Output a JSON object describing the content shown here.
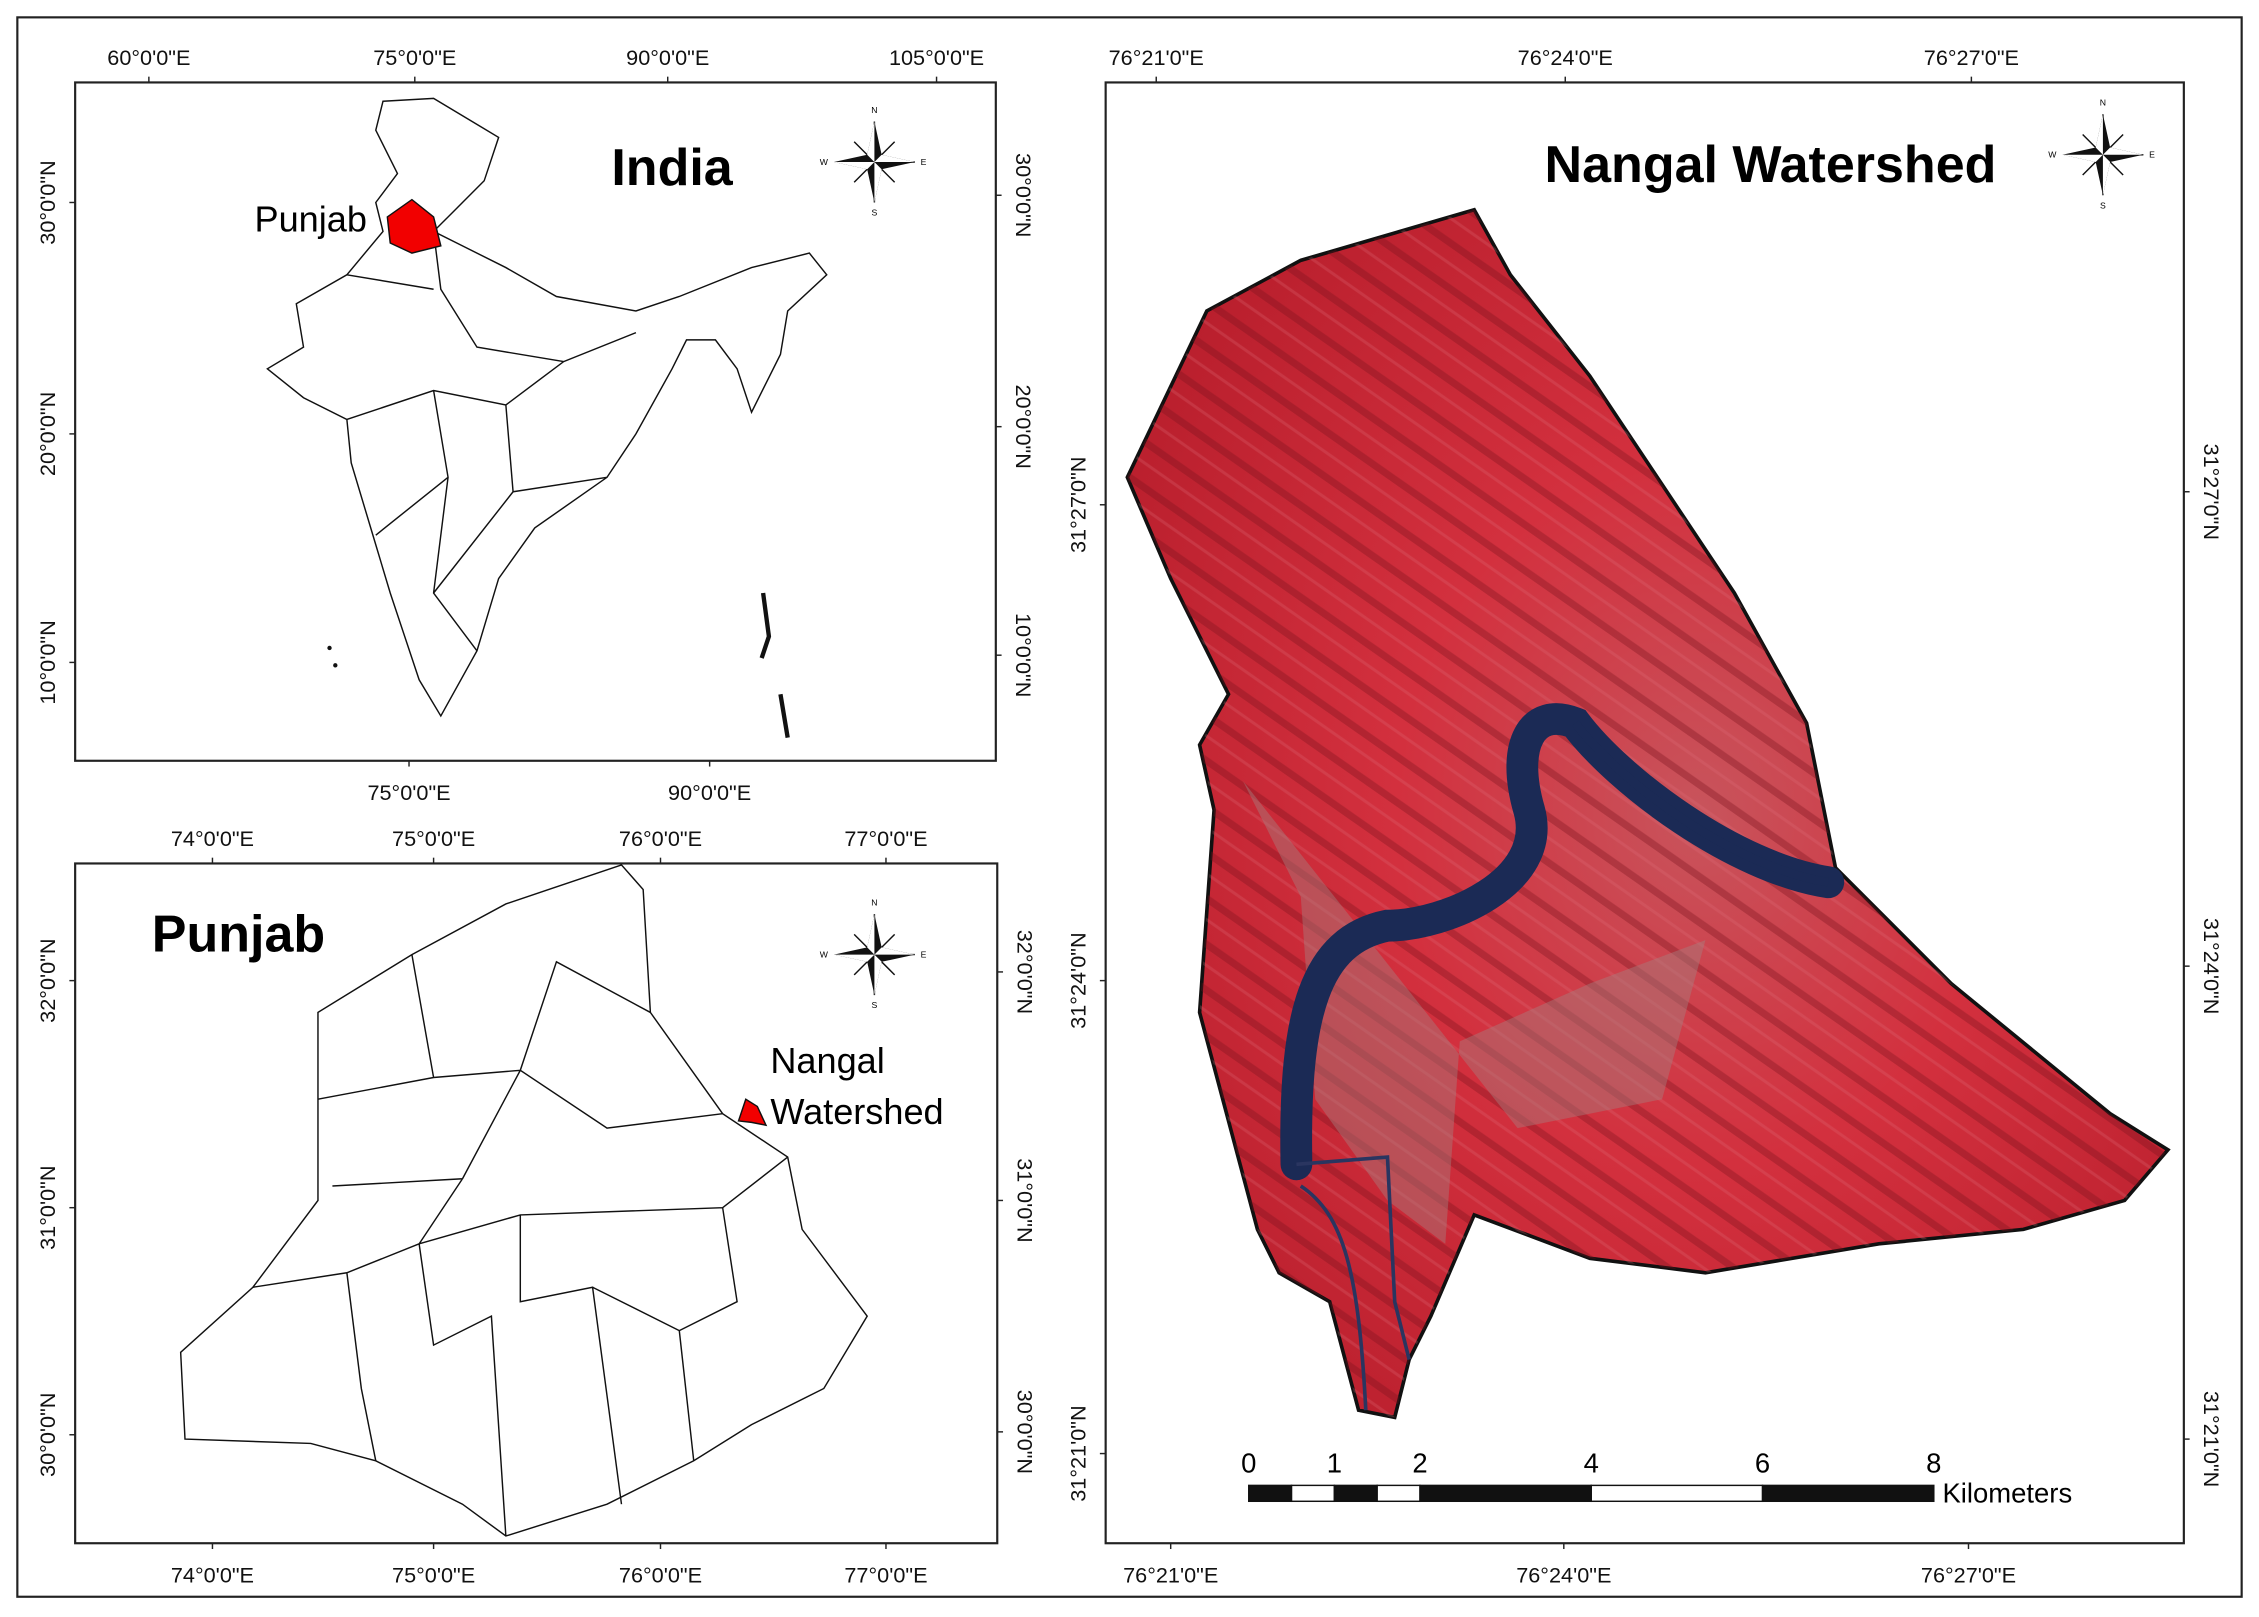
{
  "india": {
    "title": "India",
    "label": "Punjab",
    "top_ticks": [
      "60°0'0\"E",
      "75°0'0\"E",
      "90°0'0\"E",
      "105°0'0\"E"
    ],
    "bottom_ticks": [
      "75°0'0\"E",
      "90°0'0\"E"
    ],
    "left_ticks": [
      "30°0'0\"N",
      "20°0'0\"N",
      "10°0'0\"N"
    ],
    "right_ticks": [
      "30°0'0\"N",
      "20°0'0\"N",
      "10°0'0\"N"
    ]
  },
  "punjab": {
    "title": "Punjab",
    "label": [
      "Nangal",
      "Watershed"
    ],
    "top_ticks": [
      "74°0'0\"E",
      "75°0'0\"E",
      "76°0'0\"E",
      "77°0'0\"E"
    ],
    "bottom_ticks": [
      "74°0'0\"E",
      "75°0'0\"E",
      "76°0'0\"E",
      "77°0'0\"E"
    ],
    "left_ticks": [
      "32°0'0\"N",
      "31°0'0\"N",
      "30°0'0\"N"
    ],
    "right_ticks": [
      "32°0'0\"N",
      "31°0'0\"N",
      "30°0'0\"N"
    ]
  },
  "nangal": {
    "title": "Nangal Watershed",
    "top_ticks": [
      "76°21'0\"E",
      "76°24'0\"E",
      "76°27'0\"E"
    ],
    "bottom_ticks": [
      "76°21'0\"E",
      "76°24'0\"E",
      "76°27'0\"E"
    ],
    "left_ticks": [
      "31°27'0\"N",
      "31°24'0\"N",
      "31°21'0\"N"
    ],
    "right_ticks": [
      "31°27'0\"N",
      "31°24'0\"N",
      "31°21'0\"N"
    ],
    "scale_bar": {
      "labels": [
        0,
        1,
        2,
        4,
        6,
        8
      ],
      "unit": "Kilometers"
    }
  },
  "compass": {
    "N": "N",
    "E": "E",
    "S": "S",
    "W": "W"
  }
}
